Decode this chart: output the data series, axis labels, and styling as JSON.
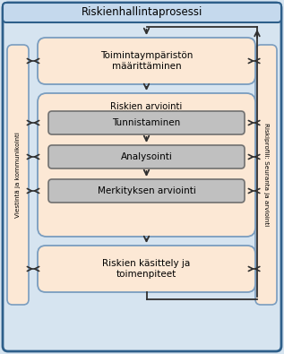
{
  "title": "Riskienhallintaprosessi",
  "box_toiminta": "Toimintaympäristön\nmäärittäminen",
  "box_riskien_arviointi_label": "Riskien arviointi",
  "box_tunnistaminen": "Tunnistaminen",
  "box_analysointi": "Analysointi",
  "box_merkityksen": "Merkityksen arviointi",
  "box_kasittely": "Riskien käsittely ja\ntoimenpiteet",
  "left_label": "Viestintä ja kommunikointi",
  "right_label": "Riskiprofili: Seuranta ja arviointi",
  "outer_bg": "#d6e4f0",
  "outer_border": "#2e5f8a",
  "content_bg": "#d6e4f0",
  "inner_bg": "#fce8d5",
  "inner_border": "#7a9dbf",
  "arviointi_bg": "#fce8d5",
  "arviointi_border": "#7a9dbf",
  "sub_box_bg": "#c0c0c0",
  "sub_box_border": "#707070",
  "side_box_bg": "#fce8d5",
  "side_box_border": "#7a9dbf",
  "title_bg": "#c5d9ed",
  "title_border": "#2e5f8a",
  "arrow_color": "#303030",
  "text_color": "#000000",
  "figw": 3.17,
  "figh": 3.95,
  "dpi": 100
}
